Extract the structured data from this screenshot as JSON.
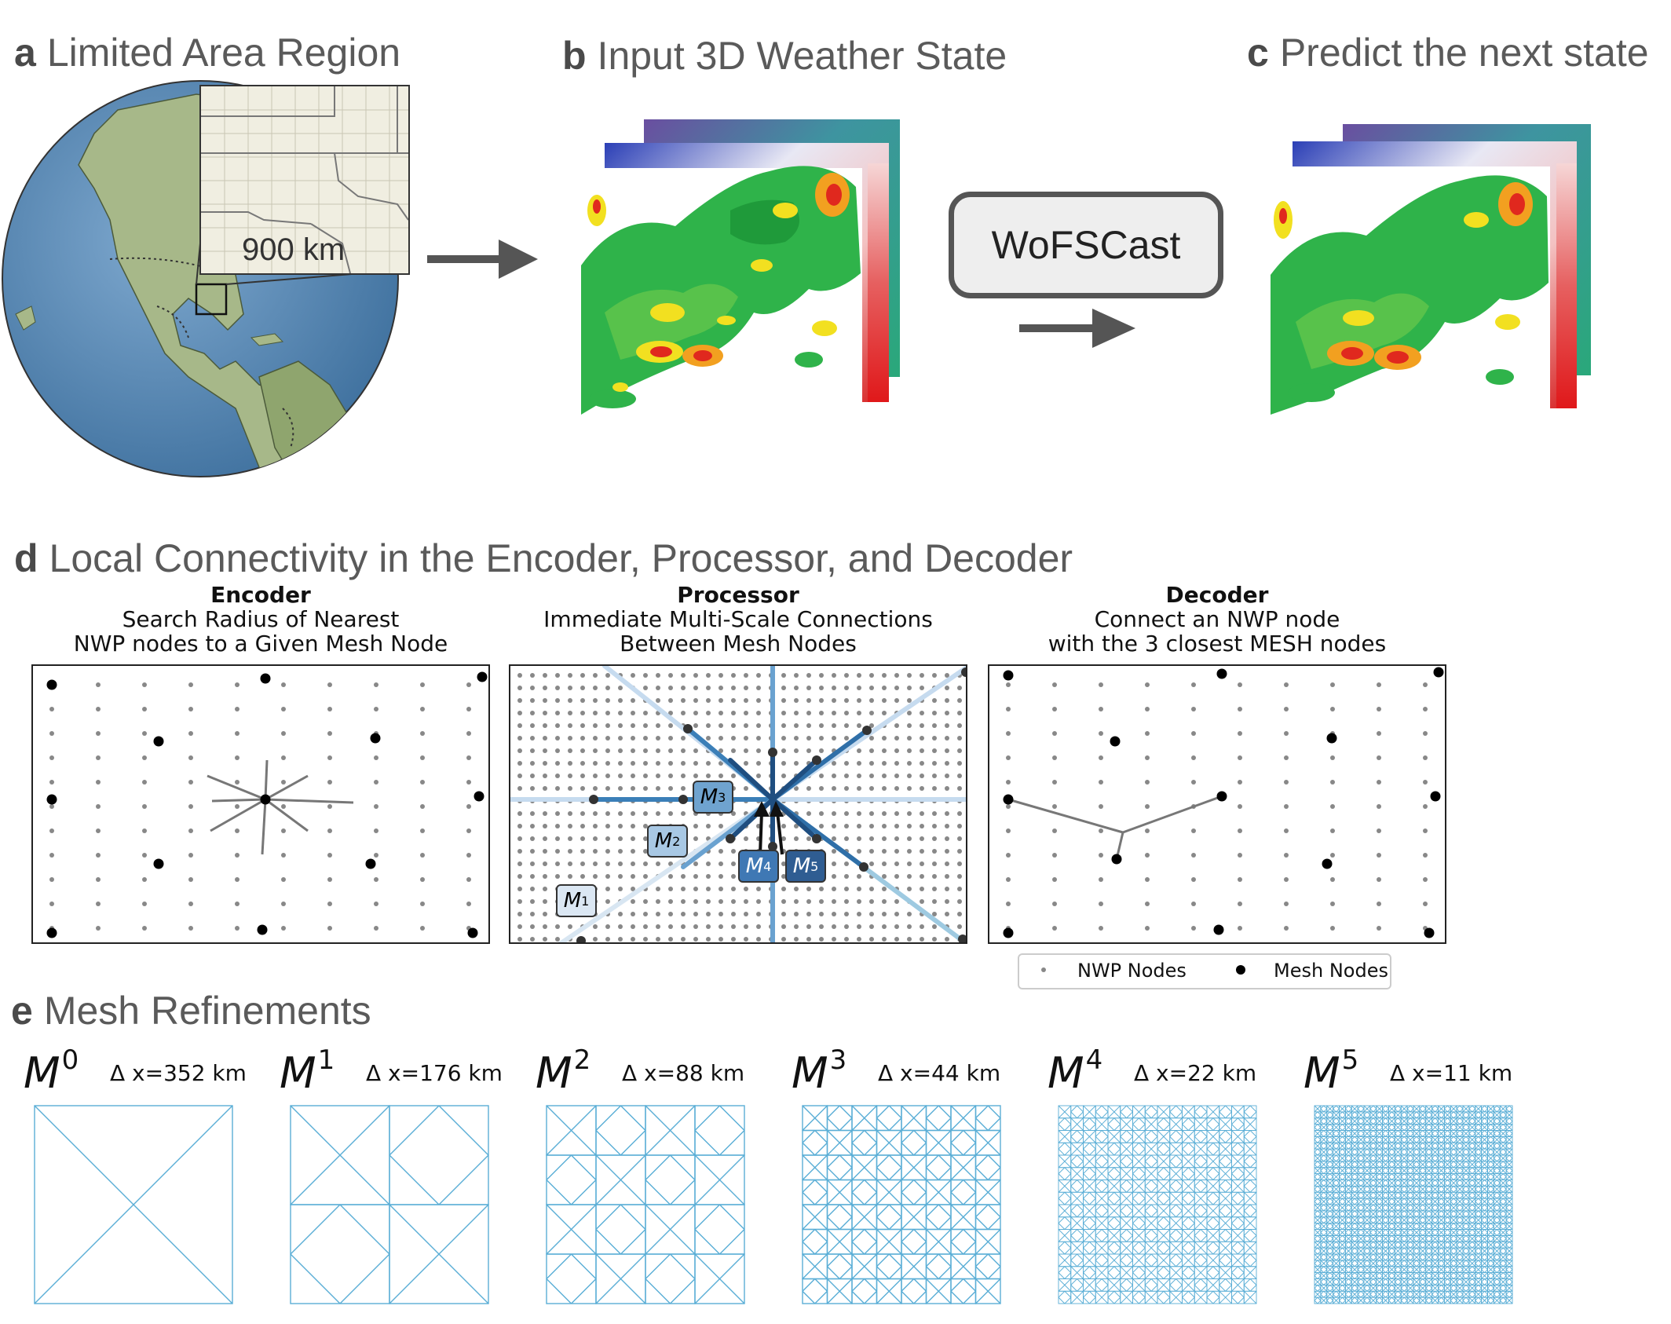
{
  "panels": {
    "a": {
      "letter": "a",
      "title": "Limited Area Region",
      "inset_label": "900 km"
    },
    "b": {
      "letter": "b",
      "title": "Input 3D Weather State"
    },
    "c": {
      "letter": "c",
      "title": "Predict the next state"
    },
    "model_label": "WoFSCast",
    "d": {
      "letter": "d",
      "title": "Local Connectivity in the Encoder, Processor, and Decoder"
    },
    "e": {
      "letter": "e",
      "title": "Mesh Refinements"
    }
  },
  "subpanels": {
    "encoder": {
      "heading": "Encoder",
      "line1": "Search Radius of Nearest",
      "line2": "NWP nodes to a Given Mesh Node"
    },
    "processor": {
      "heading": "Processor",
      "line1": "Immediate Multi-Scale Connections",
      "line2": "Between Mesh Nodes"
    },
    "decoder": {
      "heading": "Decoder",
      "line1": "Connect an NWP node",
      "line2": "with the 3 closest MESH nodes"
    }
  },
  "processor_tags": [
    {
      "base": "M",
      "sup": "1"
    },
    {
      "base": "M",
      "sup": "2"
    },
    {
      "base": "M",
      "sup": "3"
    },
    {
      "base": "M",
      "sup": "4"
    },
    {
      "base": "M",
      "sup": "5"
    }
  ],
  "legend": {
    "nwp": "NWP Nodes",
    "mesh": "Mesh Nodes"
  },
  "meshes": [
    {
      "base": "M",
      "sup": "0",
      "dx": "Δ x=352 km",
      "level": 0
    },
    {
      "base": "M",
      "sup": "1",
      "dx": "Δ x=176 km",
      "level": 1
    },
    {
      "base": "M",
      "sup": "2",
      "dx": "Δ x=88 km",
      "level": 2
    },
    {
      "base": "M",
      "sup": "3",
      "dx": "Δ x=44 km",
      "level": 3
    },
    {
      "base": "M",
      "sup": "4",
      "dx": "Δ x=22 km",
      "level": 4
    },
    {
      "base": "M",
      "sup": "5",
      "dx": "Δ x=11 km",
      "level": 5
    }
  ],
  "colors": {
    "ocean": "#4a7fb0",
    "land": "#8fae6a",
    "arrow": "#555555",
    "mesh_line": "#5aaed6",
    "radar_green": "#2fb34a",
    "radar_yellow": "#f2e020",
    "radar_red": "#e0281e"
  }
}
